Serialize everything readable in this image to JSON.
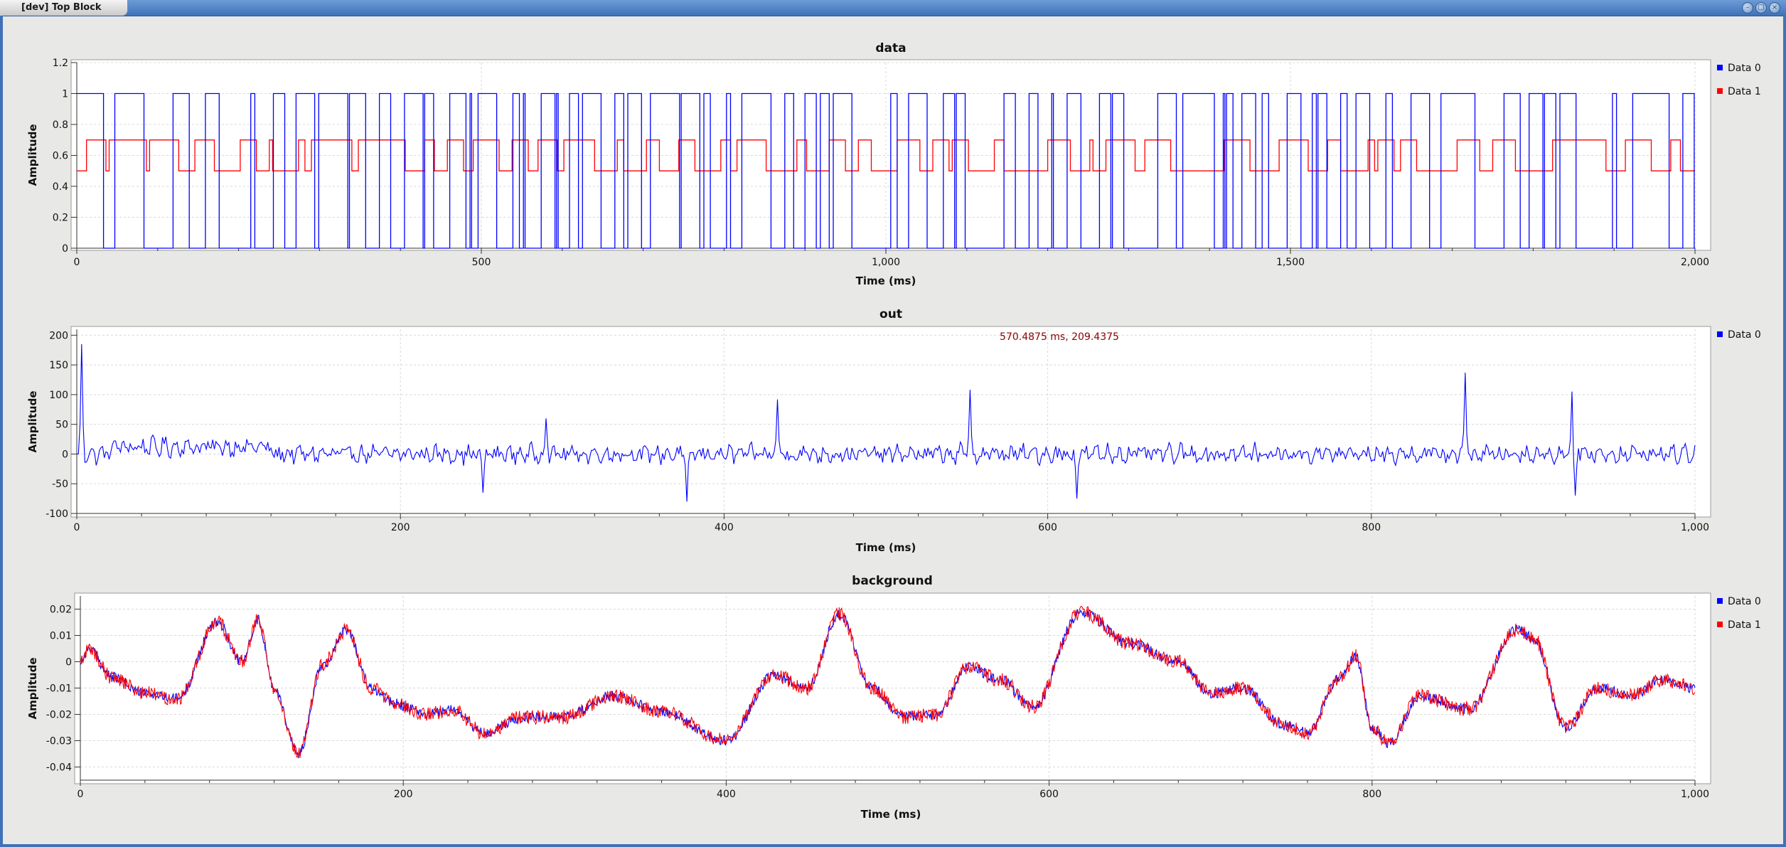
{
  "window": {
    "title": "[dev] Top Block",
    "controls": [
      "minimize-icon",
      "maximize-icon",
      "close-icon"
    ]
  },
  "colors": {
    "series0": "#0000ff",
    "series1": "#ff0000",
    "picker": "#8b0000",
    "titlebar": "#3f72b8",
    "background": "#e8e8e6"
  },
  "plots": [
    {
      "id": "data",
      "title": "data",
      "ylabel": "Amplitude",
      "xlabel": "Time (ms)",
      "legend": [
        "Data 0",
        "Data 1"
      ],
      "picker": ""
    },
    {
      "id": "out",
      "title": "out",
      "ylabel": "Amplitude",
      "xlabel": "Time (ms)",
      "legend": [
        "Data 0"
      ],
      "picker": "570.4875 ms, 209.4375"
    },
    {
      "id": "background",
      "title": "background",
      "ylabel": "Amplitude",
      "xlabel": "Time (ms)",
      "legend": [
        "Data 0",
        "Data 1"
      ],
      "picker": ""
    }
  ],
  "chart_data": [
    {
      "type": "line",
      "title": "data",
      "xlabel": "Time (ms)",
      "ylabel": "Amplitude",
      "xlim": [
        0,
        2000
      ],
      "ylim": [
        0,
        1.2
      ],
      "xticks": [
        "0",
        "500",
        "1,000",
        "1,500",
        "2,000"
      ],
      "yticks": [
        "0",
        "0.2",
        "0.4",
        "0.6",
        "0.8",
        "1",
        "1.2"
      ],
      "grid": true,
      "legend_position": "right",
      "series": [
        {
          "name": "Data 0",
          "color": "#0000ff",
          "style": "step",
          "levels": [
            0,
            1
          ],
          "description": "random binary bits"
        },
        {
          "name": "Data 1",
          "color": "#ff0000",
          "style": "step",
          "levels": [
            0.5,
            0.7
          ]
        }
      ]
    },
    {
      "type": "line",
      "title": "out",
      "xlabel": "Time (ms)",
      "ylabel": "Amplitude",
      "xlim": [
        0,
        1000
      ],
      "ylim": [
        -100,
        210
      ],
      "xticks": [
        "0",
        "200",
        "400",
        "600",
        "800",
        "1,000"
      ],
      "yticks": [
        "-100",
        "-50",
        "0",
        "50",
        "100",
        "150",
        "200"
      ],
      "grid": true,
      "legend_position": "right",
      "series": [
        {
          "name": "Data 0",
          "color": "#0000ff",
          "peaks": [
            {
              "x": 3,
              "y": 185
            },
            {
              "x": 251,
              "y": -65
            },
            {
              "x": 290,
              "y": 60
            },
            {
              "x": 377,
              "y": -80
            },
            {
              "x": 433,
              "y": 92
            },
            {
              "x": 552,
              "y": 108
            },
            {
              "x": 618,
              "y": -75
            },
            {
              "x": 858,
              "y": 137
            },
            {
              "x": 924,
              "y": 105
            },
            {
              "x": 926,
              "y": -70
            }
          ]
        }
      ],
      "picker_readout": "570.4875 ms, 209.4375"
    },
    {
      "type": "line",
      "title": "background",
      "xlabel": "Time (ms)",
      "ylabel": "Amplitude",
      "xlim": [
        0,
        1000
      ],
      "ylim": [
        -0.045,
        0.025
      ],
      "xticks": [
        "0",
        "200",
        "400",
        "600",
        "800",
        "1,000"
      ],
      "yticks": [
        "-0.04",
        "-0.03",
        "-0.02",
        "-0.01",
        "0",
        "0.01",
        "0.02"
      ],
      "grid": true,
      "legend_position": "right",
      "series": [
        {
          "name": "Data 0",
          "color": "#0000ff",
          "x": [
            0,
            5,
            20,
            40,
            60,
            85,
            100,
            110,
            120,
            135,
            150,
            165,
            180,
            195,
            215,
            230,
            250,
            275,
            300,
            330,
            360,
            400,
            430,
            450,
            470,
            490,
            510,
            530,
            550,
            570,
            590,
            620,
            650,
            680,
            700,
            720,
            745,
            760,
            780,
            790,
            800,
            810,
            830,
            860,
            890,
            900,
            920,
            940,
            960,
            980,
            1000
          ],
          "y": [
            0.0,
            0.005,
            -0.006,
            -0.012,
            -0.014,
            0.015,
            0.0,
            0.016,
            -0.01,
            -0.035,
            -0.001,
            0.012,
            -0.01,
            -0.016,
            -0.02,
            -0.018,
            -0.027,
            -0.021,
            -0.021,
            -0.013,
            -0.019,
            -0.03,
            -0.005,
            -0.01,
            0.018,
            -0.01,
            -0.021,
            -0.02,
            -0.002,
            -0.007,
            -0.017,
            0.019,
            0.007,
            0.0,
            -0.012,
            -0.01,
            -0.024,
            -0.027,
            -0.006,
            0.002,
            -0.025,
            -0.031,
            -0.013,
            -0.018,
            0.012,
            0.009,
            -0.025,
            -0.01,
            -0.013,
            -0.007,
            -0.01
          ]
        },
        {
          "name": "Data 1",
          "color": "#ff0000",
          "note_overlay": true
        }
      ]
    }
  ]
}
